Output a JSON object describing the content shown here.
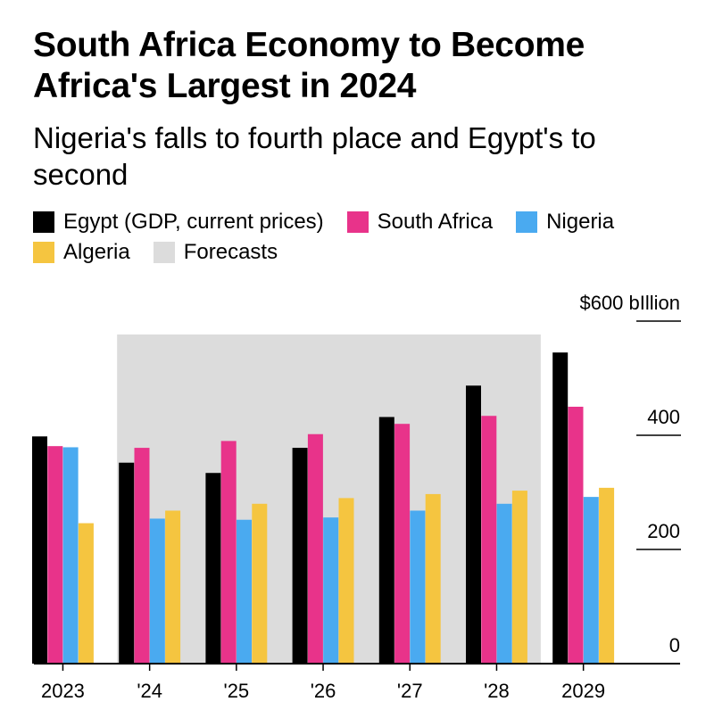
{
  "title": "South Africa Economy to Become Africa's Largest in 2024",
  "subtitle": "Nigeria's falls to fourth place and Egypt's to second",
  "legend": [
    {
      "label": "Egypt (GDP, current prices)",
      "color": "#000000"
    },
    {
      "label": "South Africa",
      "color": "#e8338a"
    },
    {
      "label": "Nigeria",
      "color": "#4aaaf0"
    },
    {
      "label": "Algeria",
      "color": "#f5c540"
    },
    {
      "label": "Forecasts",
      "color": "#dcdcdc"
    }
  ],
  "chart_data": {
    "type": "bar",
    "categories": [
      "2023",
      "'24",
      "'25",
      "'26",
      "'27",
      "'28",
      "2029"
    ],
    "series": [
      {
        "name": "Egypt (GDP, current prices)",
        "color": "#000000",
        "values": [
          398,
          352,
          334,
          378,
          432,
          487,
          545
        ]
      },
      {
        "name": "South Africa",
        "color": "#e8338a",
        "values": [
          381,
          378,
          390,
          402,
          420,
          434,
          450
        ]
      },
      {
        "name": "Nigeria",
        "color": "#4aaaf0",
        "values": [
          379,
          254,
          252,
          256,
          268,
          280,
          292
        ]
      },
      {
        "name": "Algeria",
        "color": "#f5c540",
        "values": [
          246,
          268,
          280,
          290,
          297,
          303,
          308
        ]
      }
    ],
    "forecast_span": [
      "'24",
      "'28"
    ],
    "ylim": [
      0,
      600
    ],
    "yticks": [
      {
        "value": 600,
        "label": "$600 bIllion"
      },
      {
        "value": 400,
        "label": "400"
      },
      {
        "value": 200,
        "label": "200"
      },
      {
        "value": 0,
        "label": "0"
      }
    ],
    "y_axis_side": "right"
  }
}
